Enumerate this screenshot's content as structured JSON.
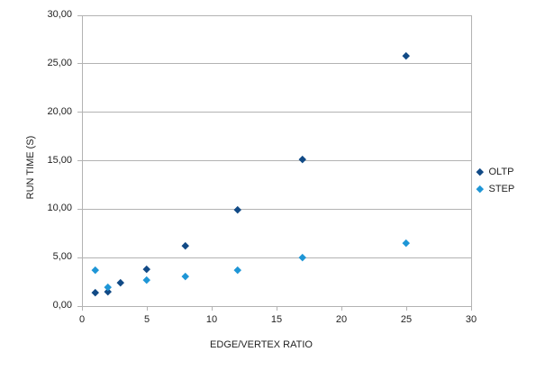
{
  "chart_data": {
    "type": "scatter",
    "title": "",
    "xlabel": "EDGE/VERTEX RATIO",
    "ylabel": "RUN TIME (S)",
    "xlim": [
      0,
      30
    ],
    "ylim": [
      0,
      30
    ],
    "x_ticks": [
      0,
      5,
      10,
      15,
      20,
      25,
      30
    ],
    "x_tick_labels": [
      "0",
      "5",
      "10",
      "15",
      "20",
      "25",
      "30"
    ],
    "y_ticks": [
      0,
      5,
      10,
      15,
      20,
      25,
      30
    ],
    "y_tick_labels": [
      "0,00",
      "5,00",
      "10,00",
      "15,00",
      "20,00",
      "25,00",
      "30,00"
    ],
    "grid": "horizontal-only",
    "legend_position": "right",
    "series": [
      {
        "name": "OLTP",
        "color": "#114A86",
        "marker": "diamond",
        "points": [
          [
            1,
            1.4
          ],
          [
            2,
            1.5
          ],
          [
            3,
            2.4
          ],
          [
            5,
            3.8
          ],
          [
            8,
            6.2
          ],
          [
            12,
            10.0
          ],
          [
            17,
            15.2
          ],
          [
            25,
            25.8
          ]
        ]
      },
      {
        "name": "STEP",
        "color": "#1E96D6",
        "marker": "diamond",
        "points": [
          [
            1,
            3.7
          ],
          [
            2,
            2.0
          ],
          [
            5,
            2.7
          ],
          [
            8,
            3.1
          ],
          [
            12,
            3.7
          ],
          [
            17,
            5.0
          ],
          [
            25,
            6.5
          ]
        ]
      }
    ],
    "colors": {
      "background": "#ffffff",
      "gridline": "#b3b3b3",
      "axis_line": "#b3b3b3",
      "text": "#222222"
    }
  }
}
